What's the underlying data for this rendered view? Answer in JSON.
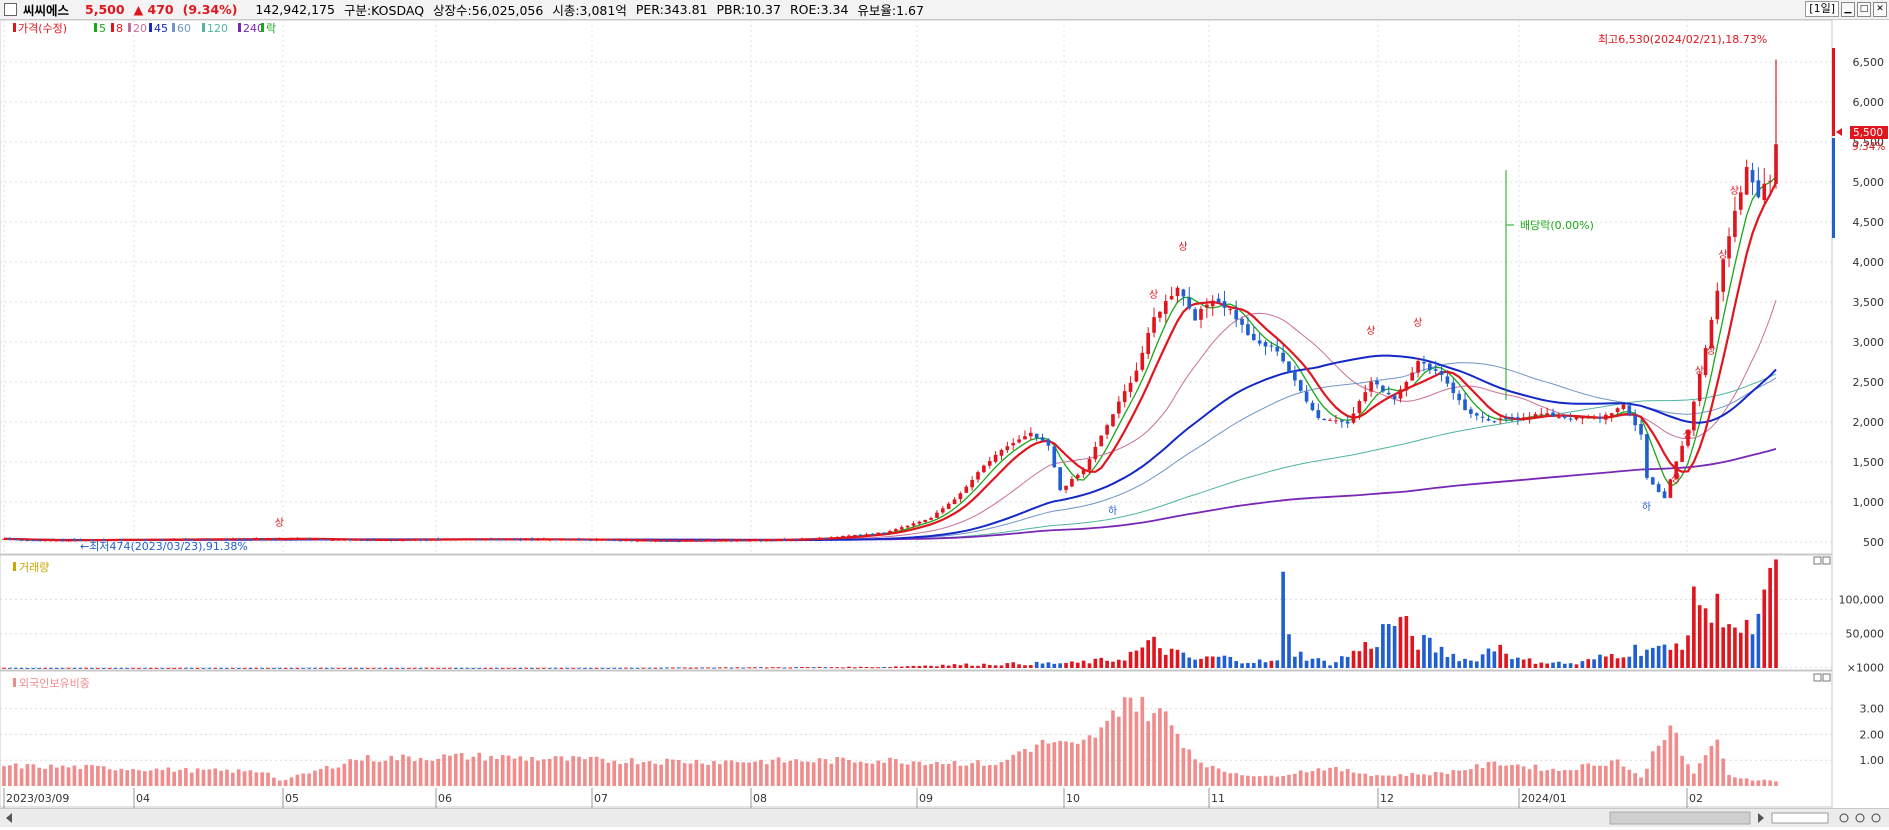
{
  "header": {
    "stock_name": "씨씨에스",
    "price": "5,500",
    "change": "▲ 470",
    "change_pct": "(9.34%)",
    "volume": "142,942,175",
    "market": "구분:KOSDAQ",
    "shares": "상장수:56,025,056",
    "market_cap": "시총:3,081억",
    "per": "PER:343.81",
    "pbr": "PBR:10.37",
    "roe": "ROE:3.34",
    "float": "유보율:1.67",
    "period": "[1일]",
    "min_icon": "minimize-icon",
    "max_icon": "maximize-icon",
    "close_icon": "close-icon"
  },
  "colors": {
    "up": "#e0161f",
    "down": "#1f5fcf",
    "ma5": "#18a818",
    "ma8": "#e0161f",
    "ma20": "#c86e9a",
    "ma45": "#1428c8",
    "ma60": "#6e96c8",
    "ma120": "#50b4a0",
    "ma240": "#7828b4",
    "foreign": "#f08c8c"
  },
  "chart_data": [
    {
      "type": "candlestick",
      "legend": [
        {
          "label": "가격(수정)",
          "color": "#e0161f"
        },
        {
          "label": "5",
          "color": "#18a818"
        },
        {
          "label": "8",
          "color": "#e0161f"
        },
        {
          "label": "20",
          "color": "#c86e9a"
        },
        {
          "label": "45",
          "color": "#1428c8"
        },
        {
          "label": "60",
          "color": "#6e96c8"
        },
        {
          "label": "120",
          "color": "#50b4a0"
        },
        {
          "label": "240",
          "color": "#7828b4"
        },
        {
          "label": "락",
          "color": "#18a818"
        }
      ],
      "ylim": [
        350,
        6750
      ],
      "y_ticks": [
        "500",
        "1,000",
        "1,500",
        "2,000",
        "2,500",
        "3,000",
        "3,500",
        "4,000",
        "4,500",
        "5,000",
        "5,500",
        "6,000",
        "6,500"
      ],
      "x_ticks": [
        "2023/03/09",
        "04",
        "05",
        "06",
        "07",
        "08",
        "09",
        "10",
        "11",
        "12",
        "2024/01",
        "02"
      ],
      "annotations": {
        "high": "최고6,530(2024/02/21),18.73%",
        "low": "←최저474(2023/03/23),91.38%",
        "dividend": "배당락(0.00%)",
        "limit_up": "상",
        "limit_down": "하"
      },
      "current_price_label": "5,500",
      "current_pct_label": "9.34%",
      "keypoints": [
        [
          0,
          540
        ],
        [
          5,
          520
        ],
        [
          25,
          530
        ],
        [
          50,
          540
        ],
        [
          60,
          525
        ],
        [
          80,
          535
        ],
        [
          100,
          530
        ],
        [
          110,
          515
        ],
        [
          130,
          525
        ],
        [
          140,
          550
        ],
        [
          150,
          620
        ],
        [
          158,
          800
        ],
        [
          163,
          1100
        ],
        [
          167,
          1450
        ],
        [
          171,
          1700
        ],
        [
          175,
          1850
        ],
        [
          178,
          1700
        ],
        [
          180,
          1150
        ],
        [
          184,
          1400
        ],
        [
          189,
          2100
        ],
        [
          193,
          2650
        ],
        [
          196,
          3300
        ],
        [
          200,
          3700
        ],
        [
          203,
          3300
        ],
        [
          206,
          3550
        ],
        [
          209,
          3400
        ],
        [
          213,
          3000
        ],
        [
          217,
          2900
        ],
        [
          220,
          2500
        ],
        [
          224,
          2050
        ],
        [
          229,
          2000
        ],
        [
          233,
          2500
        ],
        [
          237,
          2300
        ],
        [
          241,
          2750
        ],
        [
          245,
          2600
        ],
        [
          249,
          2150
        ],
        [
          253,
          2000
        ],
        [
          257,
          2050
        ],
        [
          262,
          2100
        ],
        [
          267,
          2050
        ],
        [
          272,
          2050
        ],
        [
          276,
          2200
        ],
        [
          279,
          1850
        ],
        [
          280,
          1300
        ],
        [
          283,
          1050
        ],
        [
          285,
          1500
        ],
        [
          287,
          1900
        ],
        [
          289,
          2600
        ],
        [
          291,
          3300
        ],
        [
          293,
          4000
        ],
        [
          295,
          4600
        ],
        [
          297,
          5150
        ],
        [
          299,
          4850
        ],
        [
          301,
          5030
        ],
        [
          302,
          5500
        ]
      ],
      "volume_ylim": [
        0,
        140000
      ],
      "volume_ticks": [
        "×1000",
        "50,000",
        "100,000"
      ],
      "volume_label": "거래량",
      "volume_keypoints": [
        [
          0,
          250
        ],
        [
          100,
          250
        ],
        [
          150,
          1500
        ],
        [
          158,
          4000
        ],
        [
          165,
          5000
        ],
        [
          175,
          6500
        ],
        [
          182,
          7000
        ],
        [
          190,
          13000
        ],
        [
          196,
          35000
        ],
        [
          200,
          20000
        ],
        [
          203,
          12000
        ],
        [
          207,
          16000
        ],
        [
          212,
          10000
        ],
        [
          217,
          9000
        ],
        [
          218,
          115000
        ],
        [
          220,
          22000
        ],
        [
          226,
          6000
        ],
        [
          233,
          35000
        ],
        [
          237,
          70000
        ],
        [
          241,
          40000
        ],
        [
          245,
          25000
        ],
        [
          250,
          10000
        ],
        [
          255,
          35000
        ],
        [
          258,
          12000
        ],
        [
          262,
          9000
        ],
        [
          268,
          6000
        ],
        [
          272,
          15000
        ],
        [
          277,
          25000
        ],
        [
          280,
          30000
        ],
        [
          284,
          25000
        ],
        [
          287,
          52000
        ],
        [
          289,
          118000
        ],
        [
          291,
          70000
        ],
        [
          293,
          95000
        ],
        [
          296,
          45000
        ],
        [
          299,
          65000
        ],
        [
          302,
          135000
        ]
      ],
      "foreign_ylim": [
        0,
        3.8
      ],
      "foreign_ticks": [
        "1.00",
        "2.00",
        "3.00"
      ],
      "foreign_label": "외국인보유비중",
      "foreign_keypoints": [
        [
          0,
          0.78
        ],
        [
          15,
          0.72
        ],
        [
          30,
          0.62
        ],
        [
          45,
          0.55
        ],
        [
          47,
          0.2
        ],
        [
          52,
          0.5
        ],
        [
          60,
          1.05
        ],
        [
          80,
          1.15
        ],
        [
          100,
          1.0
        ],
        [
          120,
          0.95
        ],
        [
          150,
          1.0
        ],
        [
          170,
          0.85
        ],
        [
          173,
          1.35
        ],
        [
          178,
          1.7
        ],
        [
          183,
          1.5
        ],
        [
          188,
          2.3
        ],
        [
          191,
          3.55
        ],
        [
          195,
          2.9
        ],
        [
          198,
          2.7
        ],
        [
          200,
          2.05
        ],
        [
          203,
          1.1
        ],
        [
          207,
          0.6
        ],
        [
          215,
          0.35
        ],
        [
          225,
          0.7
        ],
        [
          235,
          0.4
        ],
        [
          245,
          0.5
        ],
        [
          255,
          0.9
        ],
        [
          265,
          0.6
        ],
        [
          275,
          1.0
        ],
        [
          279,
          0.3
        ],
        [
          281,
          1.25
        ],
        [
          284,
          2.5
        ],
        [
          286,
          1.1
        ],
        [
          288,
          0.5
        ],
        [
          290,
          1.25
        ],
        [
          292,
          1.6
        ],
        [
          294,
          0.4
        ],
        [
          298,
          0.25
        ],
        [
          302,
          0.2
        ]
      ]
    }
  ]
}
